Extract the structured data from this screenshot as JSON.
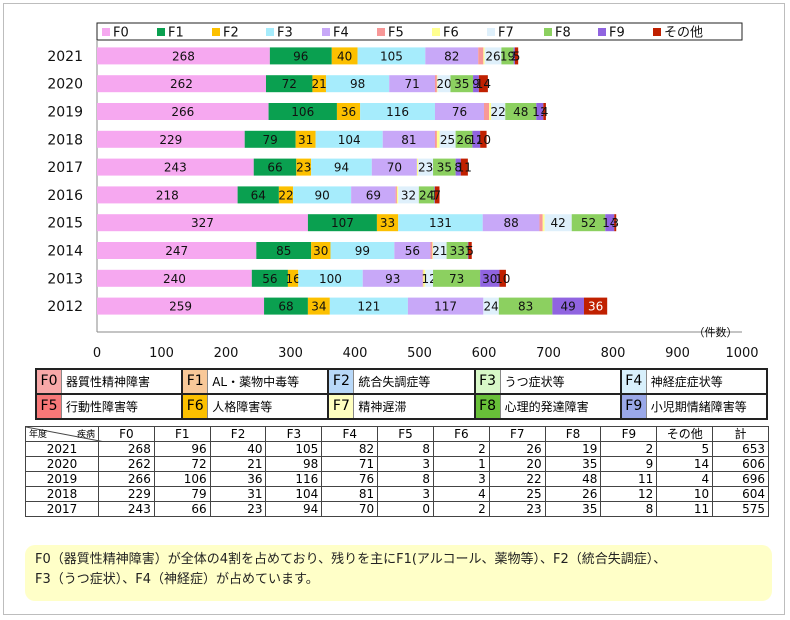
{
  "chart_data": {
    "type": "bar",
    "orientation": "horizontal",
    "stacked": true,
    "categories": [
      "2021",
      "2020",
      "2019",
      "2018",
      "2017",
      "2016",
      "2015",
      "2014",
      "2013",
      "2012"
    ],
    "series": [
      {
        "name": "F0",
        "color": "#f6a8f0",
        "values": [
          268,
          262,
          266,
          229,
          243,
          218,
          327,
          247,
          240,
          259
        ]
      },
      {
        "name": "F1",
        "color": "#0aa050",
        "values": [
          96,
          72,
          106,
          79,
          66,
          64,
          107,
          85,
          56,
          68
        ]
      },
      {
        "name": "F2",
        "color": "#fcc000",
        "values": [
          40,
          21,
          36,
          31,
          23,
          22,
          33,
          30,
          16,
          34
        ]
      },
      {
        "name": "F3",
        "color": "#a6ecfc",
        "values": [
          105,
          98,
          116,
          104,
          94,
          90,
          131,
          99,
          100,
          121
        ]
      },
      {
        "name": "F4",
        "color": "#c8a8f8",
        "values": [
          82,
          71,
          76,
          81,
          70,
          69,
          88,
          56,
          93,
          117
        ]
      },
      {
        "name": "F5",
        "color": "#f89898",
        "values": [
          8,
          3,
          8,
          3,
          0,
          2,
          5,
          3,
          1,
          0
        ]
      },
      {
        "name": "F6",
        "color": "#ffff90",
        "values": [
          2,
          1,
          3,
          4,
          2,
          2,
          3,
          1,
          3,
          0
        ]
      },
      {
        "name": "F7",
        "color": "#dff0fb",
        "values": [
          26,
          20,
          22,
          25,
          23,
          32,
          42,
          21,
          12,
          24
        ]
      },
      {
        "name": "F8",
        "color": "#8cd060",
        "values": [
          19,
          35,
          48,
          26,
          35,
          24,
          52,
          33,
          73,
          83
        ]
      },
      {
        "name": "F9",
        "color": "#9064e0",
        "values": [
          2,
          9,
          11,
          12,
          8,
          1,
          14,
          1,
          30,
          49
        ]
      },
      {
        "name": "その他",
        "color": "#c02000",
        "values": [
          5,
          14,
          4,
          10,
          11,
          7,
          3,
          5,
          10,
          36
        ]
      }
    ],
    "bar_labels": [
      [
        "268",
        "96",
        "40",
        "105",
        "82",
        "",
        "",
        "26",
        "19",
        "2",
        "5"
      ],
      [
        "262",
        "72",
        "21",
        "98",
        "71",
        "",
        "",
        "20",
        "35",
        "9",
        "14"
      ],
      [
        "266",
        "106",
        "36",
        "116",
        "76",
        "",
        "",
        "22",
        "48",
        "11",
        "4"
      ],
      [
        "229",
        "79",
        "31",
        "104",
        "81",
        "",
        "",
        "25",
        "26",
        "12",
        "10"
      ],
      [
        "243",
        "66",
        "23",
        "94",
        "70",
        "",
        "",
        "23",
        "35",
        "8",
        "11"
      ],
      [
        "218",
        "64",
        "22",
        "90",
        "69",
        "",
        "",
        "32",
        "24",
        "1",
        "7"
      ],
      [
        "327",
        "107",
        "33",
        "131",
        "88",
        "",
        "",
        "42",
        "52",
        "14",
        "3"
      ],
      [
        "247",
        "85",
        "30",
        "99",
        "56",
        "",
        "",
        "21",
        "33",
        "1",
        "5"
      ],
      [
        "240",
        "56",
        "16",
        "100",
        "93",
        "",
        "",
        "12",
        "73",
        "30",
        "10"
      ],
      [
        "259",
        "68",
        "34",
        "121",
        "117",
        "",
        "",
        "24",
        "83",
        "49",
        "36"
      ]
    ],
    "xlim": [
      0,
      1000
    ],
    "xticks": [
      "0",
      "100",
      "200",
      "300",
      "400",
      "500",
      "600",
      "700",
      "800",
      "900",
      "1000"
    ],
    "xlabel": "（件数）",
    "legend_position": "top"
  },
  "legend_grid": [
    [
      {
        "code": "F0",
        "label": "器質性精神障害",
        "color": "#f8a8a8"
      },
      {
        "code": "F1",
        "label": "AL・薬物中毒等",
        "color": "#f8c898"
      },
      {
        "code": "F2",
        "label": "統合失調症等",
        "color": "#b8d8f8"
      },
      {
        "code": "F3",
        "label": "うつ症状等",
        "color": "#d8f8c8"
      },
      {
        "code": "F4",
        "label": "神経症症状等",
        "color": "#d8f0fc"
      }
    ],
    [
      {
        "code": "F5",
        "label": "行動性障害等",
        "color": "#f87878"
      },
      {
        "code": "F6",
        "label": "人格障害等",
        "color": "#fcc000"
      },
      {
        "code": "F7",
        "label": "精神遅滞",
        "color": "#ffffc0"
      },
      {
        "code": "F8",
        "label": "心理的発達障害",
        "color": "#68c038"
      },
      {
        "code": "F9",
        "label": "小児期情緒障害等",
        "color": "#9aa8e8"
      }
    ]
  ],
  "table": {
    "corner_left": "年度",
    "corner_right": "疾病",
    "headers": [
      "F0",
      "F1",
      "F2",
      "F3",
      "F4",
      "F5",
      "F6",
      "F7",
      "F8",
      "F9",
      "その他",
      "計"
    ],
    "rows": [
      {
        "year": "2021",
        "values": [
          "268",
          "96",
          "40",
          "105",
          "82",
          "8",
          "2",
          "26",
          "19",
          "2",
          "5",
          "653"
        ]
      },
      {
        "year": "2020",
        "values": [
          "262",
          "72",
          "21",
          "98",
          "71",
          "3",
          "1",
          "20",
          "35",
          "9",
          "14",
          "606"
        ]
      },
      {
        "year": "2019",
        "values": [
          "266",
          "106",
          "36",
          "116",
          "76",
          "8",
          "3",
          "22",
          "48",
          "11",
          "4",
          "696"
        ]
      },
      {
        "year": "2018",
        "values": [
          "229",
          "79",
          "31",
          "104",
          "81",
          "3",
          "4",
          "25",
          "26",
          "12",
          "10",
          "604"
        ]
      },
      {
        "year": "2017",
        "values": [
          "243",
          "66",
          "23",
          "94",
          "70",
          "0",
          "2",
          "23",
          "35",
          "8",
          "11",
          "575"
        ]
      }
    ]
  },
  "note": {
    "line1": "F0（器質性精神障害）が全体の4割を占めており、残りを主にF1(アルコール、薬物等）、F2（統合失調症）、",
    "line2": "F3（うつ症状）、F4（神経症）が占めています。"
  }
}
